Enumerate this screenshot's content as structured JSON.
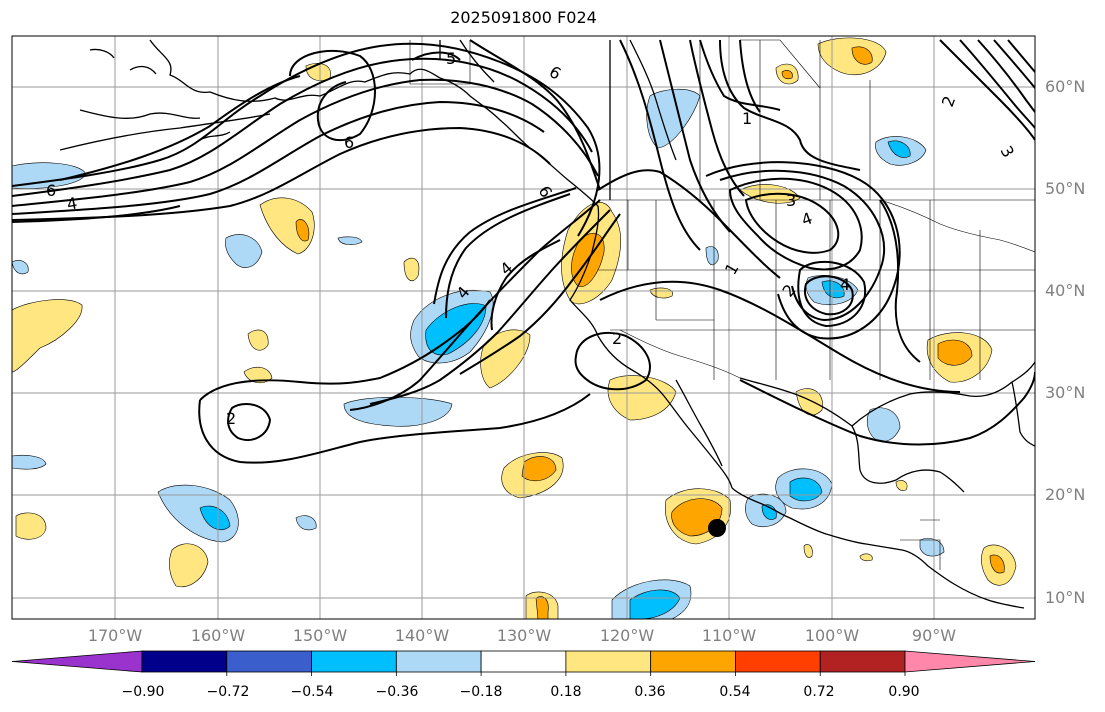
{
  "title": "2025091800 F024",
  "lat_labels": [
    "60°N",
    "50°N",
    "40°N",
    "30°N",
    "20°N",
    "10°N"
  ],
  "lon_labels": [
    "170°W",
    "160°W",
    "150°W",
    "140°W",
    "130°W",
    "120°W",
    "110°W",
    "100°W",
    "90°W"
  ],
  "colorbar": {
    "tick_labels": [
      "−0.90",
      "−0.72",
      "−0.54",
      "−0.36",
      "−0.18",
      "0.18",
      "0.36",
      "0.54",
      "0.72",
      "0.90"
    ],
    "colors": [
      "#9a32cd",
      "#00008b",
      "#3a5fcd",
      "#00bfff",
      "#add8f6",
      "#ffffff",
      "#ffe680",
      "#ffa500",
      "#ff3f00",
      "#b22222",
      "#ff88aa"
    ]
  },
  "contour_labels": [
    "5",
    "6",
    "6",
    "6",
    "4",
    "6",
    "4",
    "1",
    "4",
    "3",
    "1",
    "2",
    "4",
    "4",
    "2",
    "3",
    "2",
    "2"
  ],
  "colors": {
    "contour": "#000000",
    "coast": "#000000",
    "grid": "#9a9a9a",
    "marker": "#000000"
  }
}
